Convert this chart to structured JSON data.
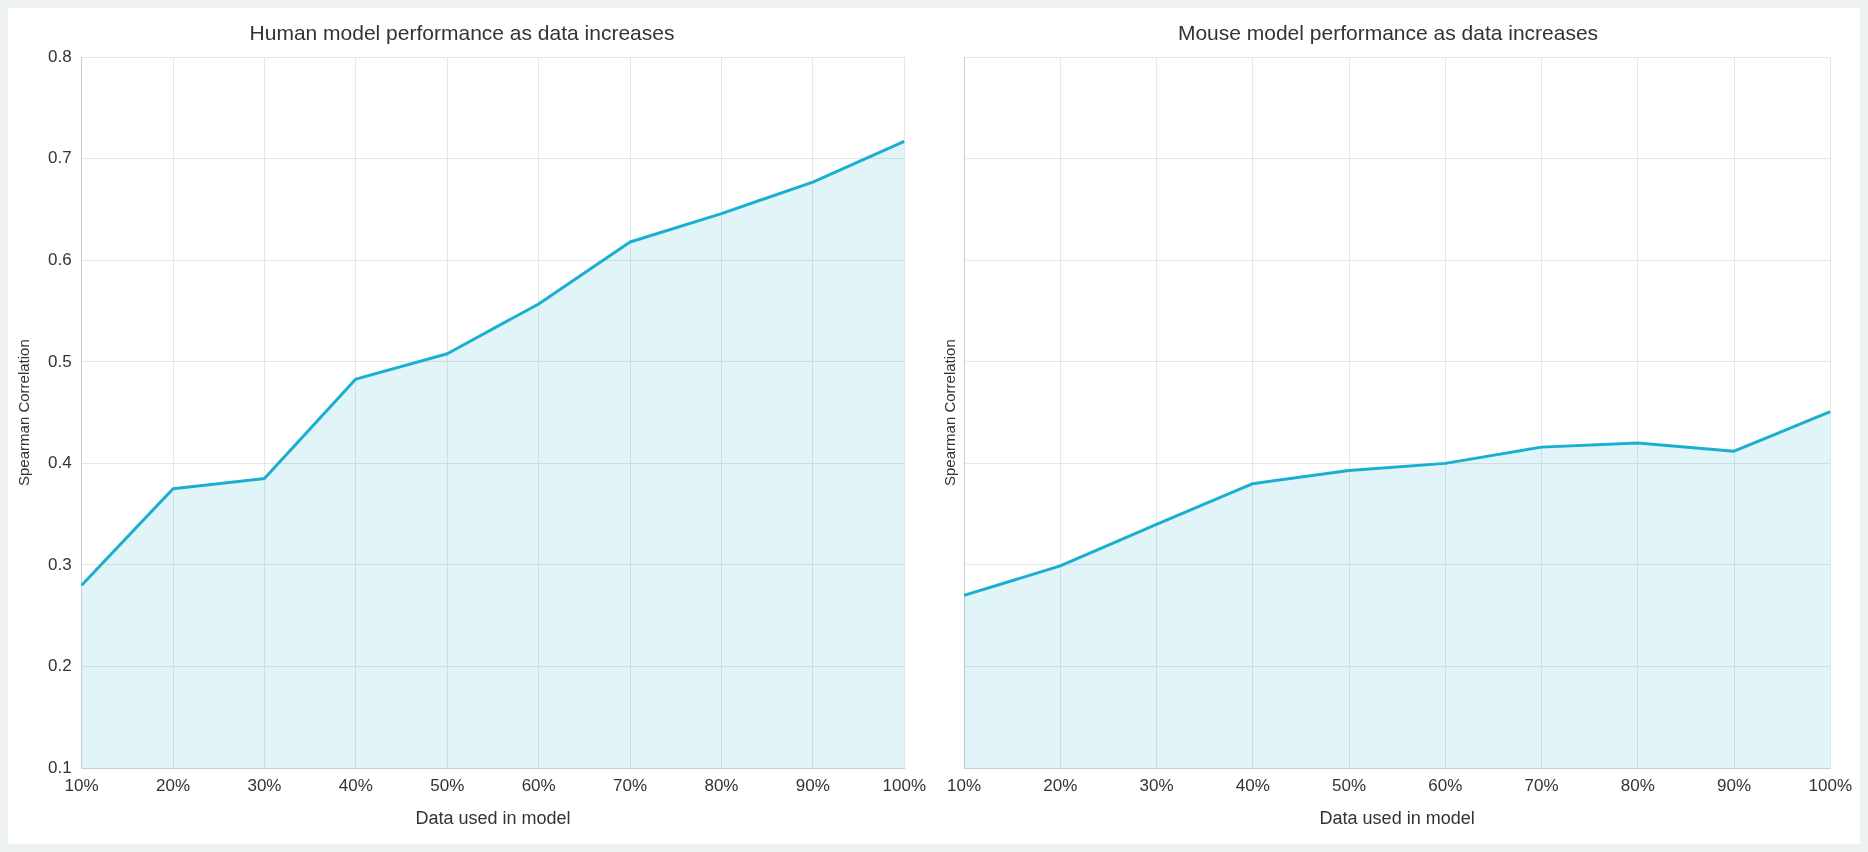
{
  "chart_data": [
    {
      "type": "area",
      "title": "Human model performance as data increases",
      "xlabel": "Data used in model",
      "ylabel": "Spearman Correlation",
      "categories": [
        "10%",
        "20%",
        "30%",
        "40%",
        "50%",
        "60%",
        "70%",
        "80%",
        "90%",
        "100%"
      ],
      "series": [
        {
          "color": "#1aafd0",
          "values": [
            0.28,
            0.375,
            0.385,
            0.483,
            0.508,
            0.557,
            0.618,
            0.646,
            0.677,
            0.717
          ]
        }
      ],
      "ylim": [
        0.1,
        0.8
      ],
      "yticks": [
        0.1,
        0.2,
        0.3,
        0.4,
        0.5,
        0.6,
        0.7,
        0.8
      ],
      "grid": true,
      "legend": false,
      "marker": "none"
    },
    {
      "type": "area",
      "title": "Mouse model performance as data increases",
      "xlabel": "Data used in model",
      "ylabel": "Spearman Correlation",
      "categories": [
        "10%",
        "20%",
        "30%",
        "40%",
        "50%",
        "60%",
        "70%",
        "80%",
        "90%",
        "100%"
      ],
      "series": [
        {
          "color": "#1aafd0",
          "values": [
            0.27,
            0.299,
            0.34,
            0.38,
            0.393,
            0.4,
            0.416,
            0.42,
            0.412,
            0.451
          ]
        }
      ],
      "ylim": [
        0.1,
        0.8
      ],
      "yticks": [
        0.1,
        0.2,
        0.3,
        0.4,
        0.5,
        0.6,
        0.7,
        0.8
      ],
      "tick_labels": "x",
      "grid": true,
      "legend": false,
      "marker": "none"
    }
  ]
}
